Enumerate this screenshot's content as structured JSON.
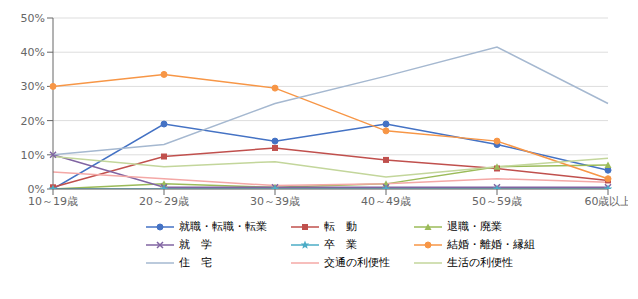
{
  "chart_data": {
    "type": "line",
    "categories": [
      "10～19歳",
      "20～29歳",
      "30～39歳",
      "40～49歳",
      "50～59歳",
      "60歳以上"
    ],
    "series": [
      {
        "name": "就職・転職・転業",
        "color": "#4472C4",
        "marker": "circle",
        "values": [
          0.0,
          19.0,
          14.0,
          19.0,
          13.0,
          5.5
        ]
      },
      {
        "name": "転　動",
        "color": "#C0504D",
        "marker": "square",
        "values": [
          0.5,
          9.5,
          12.0,
          8.5,
          6.0,
          2.5
        ]
      },
      {
        "name": "退職・廃業",
        "color": "#9BBB59",
        "marker": "triangle",
        "values": [
          0.0,
          1.5,
          0.5,
          1.5,
          6.5,
          7.0
        ]
      },
      {
        "name": "就　学",
        "color": "#8064A2",
        "marker": "cross",
        "values": [
          10.0,
          0.5,
          0.5,
          0.5,
          0.5,
          0.5
        ]
      },
      {
        "name": "卒　業",
        "color": "#4BACC6",
        "marker": "star",
        "values": [
          0.0,
          0.0,
          0.0,
          0.0,
          0.0,
          0.0
        ]
      },
      {
        "name": "結婚・離婚・縁組",
        "color": "#F79646",
        "marker": "circle",
        "values": [
          30.0,
          33.5,
          29.5,
          17.0,
          14.0,
          3.0
        ]
      },
      {
        "name": "住　宅",
        "color": "#A5B8D0",
        "marker": "none",
        "values": [
          10.0,
          13.0,
          25.0,
          33.0,
          41.5,
          25.0
        ]
      },
      {
        "name": "交通の利便性",
        "color": "#F4A8A6",
        "marker": "none",
        "values": [
          5.0,
          3.0,
          1.0,
          1.5,
          3.0,
          2.0
        ]
      },
      {
        "name": "生活の利便性",
        "color": "#C3D69B",
        "marker": "none",
        "values": [
          9.5,
          6.5,
          8.0,
          3.5,
          6.5,
          9.0
        ]
      }
    ],
    "ylim": [
      0,
      50
    ],
    "yticks": [
      {
        "value": 0,
        "label": "0%"
      },
      {
        "value": 10,
        "label": "10%"
      },
      {
        "value": 20,
        "label": "20%"
      },
      {
        "value": 30,
        "label": "30%"
      },
      {
        "value": 40,
        "label": "40%"
      },
      {
        "value": 50,
        "label": "50%"
      }
    ],
    "grid": true,
    "legend": "bottom"
  }
}
